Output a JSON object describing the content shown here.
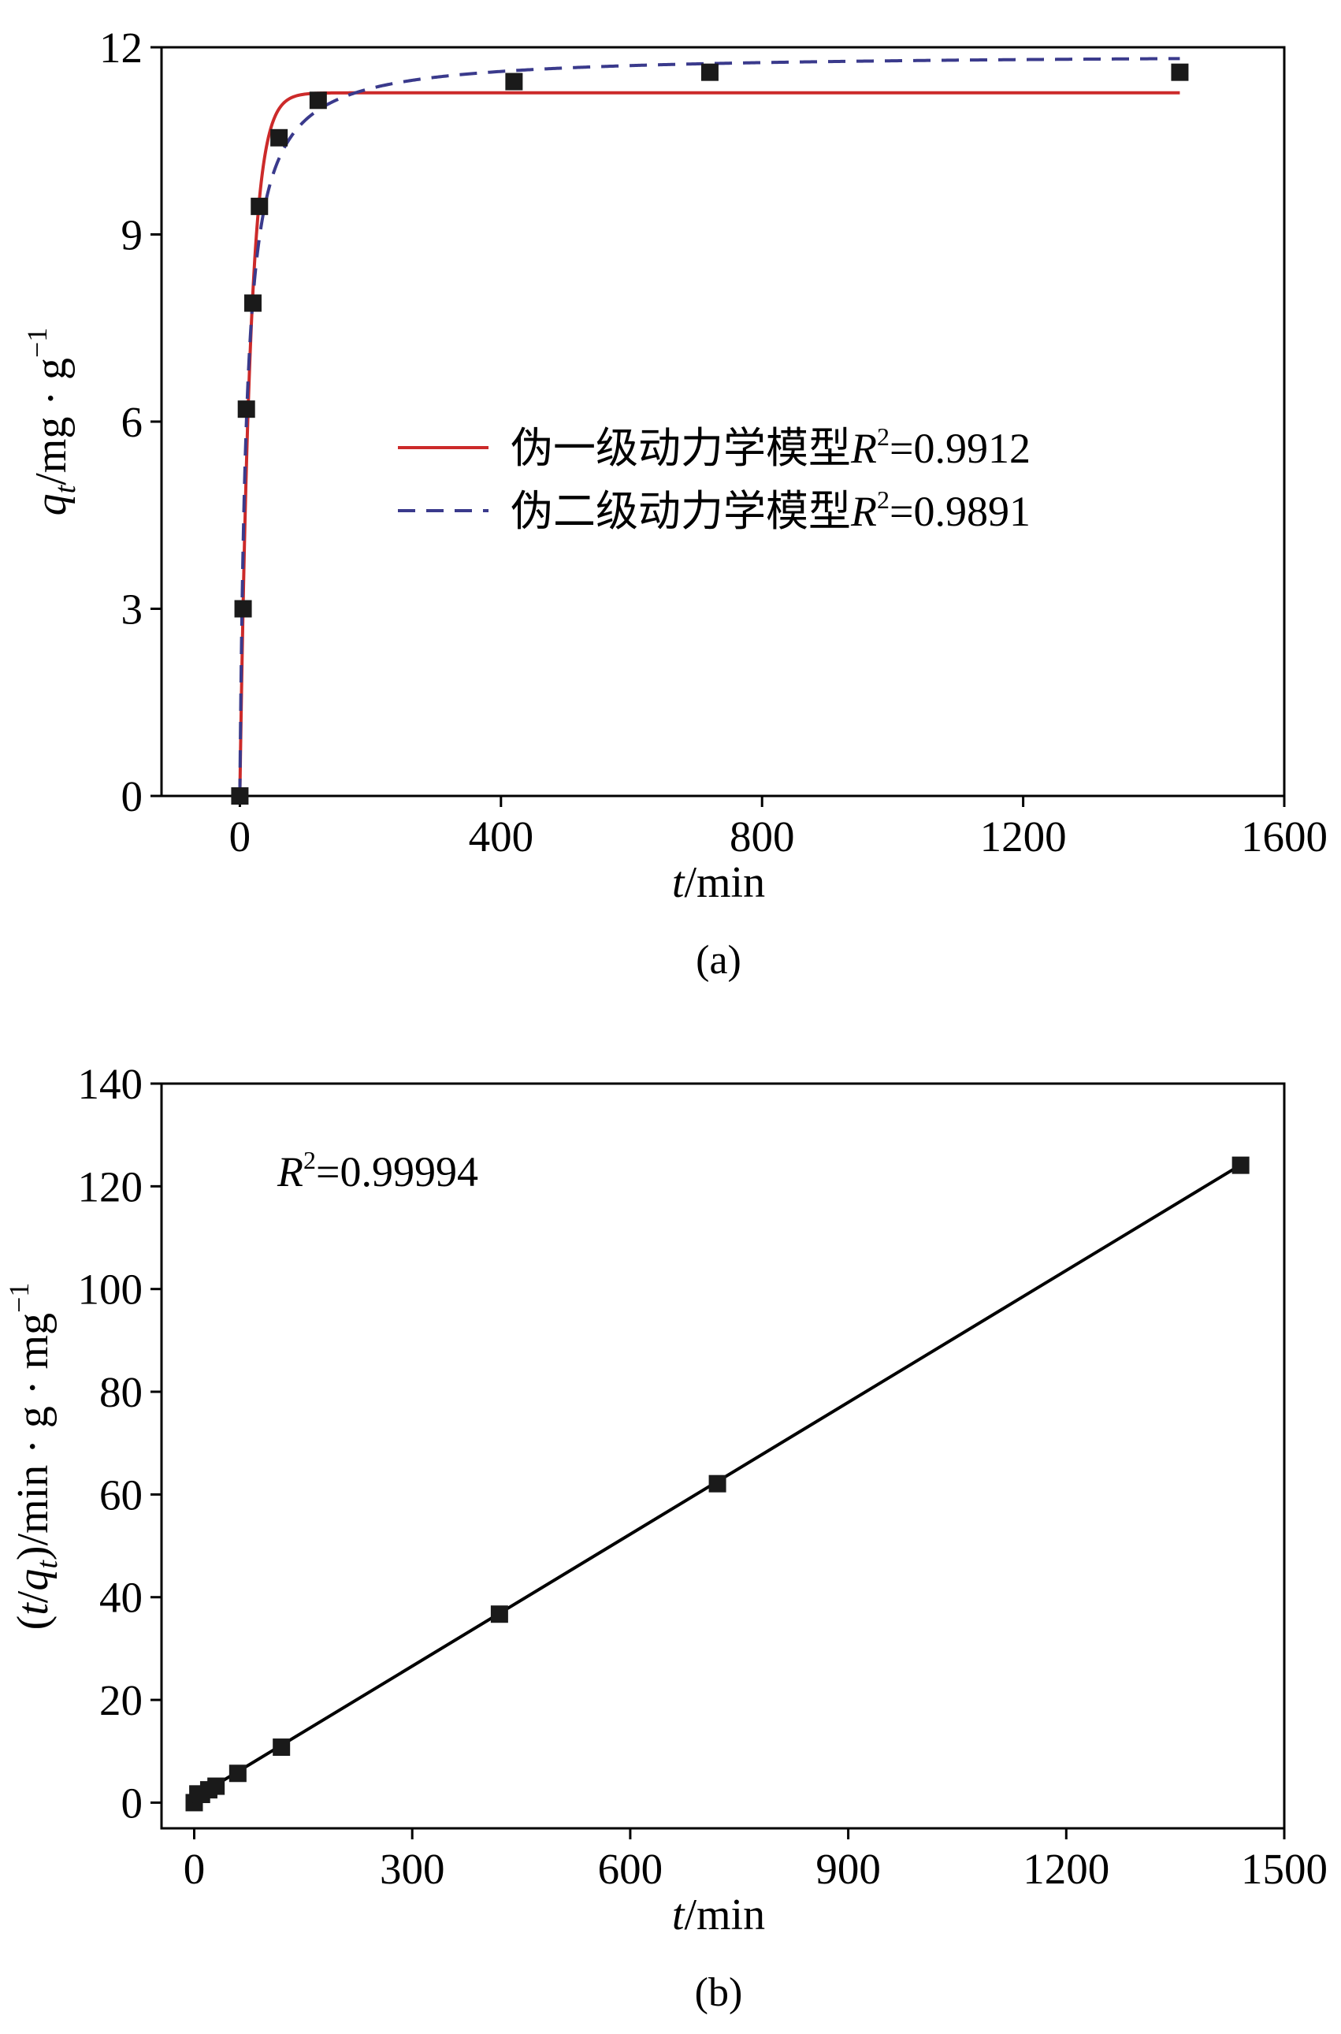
{
  "chart_data": [
    {
      "type": "scatter",
      "panel_label": "(a)",
      "xlabel": {
        "italic": "t",
        "rest": "/min"
      },
      "ylabel": {
        "italic": "q",
        "sub": "t",
        "rest": "/mg · g",
        "sup": "−1"
      },
      "xlim": [
        -120,
        1600
      ],
      "ylim": [
        0,
        12
      ],
      "xticks": [
        0,
        400,
        800,
        1200,
        1600
      ],
      "yticks": [
        0,
        3,
        6,
        9,
        12
      ],
      "grid": false,
      "legend_position": "center-right",
      "series": [
        {
          "kind": "points",
          "x": [
            0,
            5,
            10,
            20,
            30,
            60,
            120,
            420,
            720,
            1440
          ],
          "y": [
            0,
            3.0,
            6.2,
            7.9,
            9.45,
            10.55,
            11.15,
            11.45,
            11.6,
            11.6
          ]
        },
        {
          "name": "伪一级动力学模型",
          "r2_italic": "R",
          "r2_sup": "2",
          "r2_value": "=0.9912",
          "kind": "line",
          "style": "solid",
          "color": "#cc2a2a",
          "model": "pfo",
          "params": {
            "qe": 11.27,
            "k1": 0.063
          },
          "x_range": [
            0,
            1440
          ]
        },
        {
          "name": "伪二级动力学模型",
          "r2_italic": "R",
          "r2_sup": "2",
          "r2_value": "=0.9891",
          "kind": "line",
          "style": "dashed",
          "color": "#3a3a8c",
          "model": "pso",
          "params": {
            "qe": 11.9,
            "k2": 0.0085
          },
          "x_range": [
            0,
            1440
          ]
        }
      ]
    },
    {
      "type": "scatter",
      "panel_label": "(b)",
      "xlabel": {
        "italic": "t",
        "rest": "/min"
      },
      "ylabel": {
        "pre": "(",
        "italic1": "t",
        "mid": "/",
        "italic2": "q",
        "sub": "t",
        "rest": ")/min · g · mg",
        "sup": "−1"
      },
      "annotation": {
        "italic": "R",
        "sup": "2",
        "rest": "=0.99994"
      },
      "xlim": [
        -45,
        1500
      ],
      "ylim": [
        -5,
        140
      ],
      "xticks": [
        0,
        300,
        600,
        900,
        1200,
        1500
      ],
      "yticks": [
        0,
        20,
        40,
        60,
        80,
        100,
        120,
        140
      ],
      "grid": false,
      "series": [
        {
          "kind": "points",
          "x": [
            0,
            5,
            10,
            20,
            30,
            60,
            120,
            420,
            720,
            1440
          ],
          "y": [
            0,
            1.7,
            1.6,
            2.5,
            3.2,
            5.7,
            10.8,
            36.7,
            62.1,
            124.1
          ]
        },
        {
          "kind": "line",
          "style": "solid",
          "color": "#000000",
          "slope": 0.0856,
          "intercept": 0.9,
          "x_range": [
            0,
            1440
          ]
        }
      ]
    }
  ]
}
